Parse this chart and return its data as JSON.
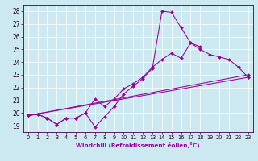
{
  "xlabel": "Windchill (Refroidissement éolien,°C)",
  "bg_color": "#cce8f0",
  "line_color": "#990099",
  "xlim": [
    -0.5,
    23.5
  ],
  "ylim": [
    18.5,
    28.5
  ],
  "xticks": [
    0,
    1,
    2,
    3,
    4,
    5,
    6,
    7,
    8,
    9,
    10,
    11,
    12,
    13,
    14,
    15,
    16,
    17,
    18,
    19,
    20,
    21,
    22,
    23
  ],
  "yticks": [
    19,
    20,
    21,
    22,
    23,
    24,
    25,
    26,
    27,
    28
  ],
  "series": [
    {
      "x": [
        0,
        1,
        2,
        3,
        4,
        5,
        6,
        7,
        8,
        9,
        10,
        11,
        12,
        13,
        14,
        15,
        16,
        17,
        18
      ],
      "y": [
        19.8,
        19.9,
        19.6,
        19.1,
        19.6,
        19.6,
        20.0,
        18.9,
        19.7,
        20.5,
        21.5,
        22.1,
        22.7,
        23.5,
        28.0,
        27.9,
        26.7,
        25.5,
        25.2
      ]
    },
    {
      "x": [
        0,
        1,
        2,
        3,
        4,
        5,
        6,
        7,
        8,
        9,
        10,
        11,
        12,
        13,
        14,
        15,
        16,
        17,
        18,
        19,
        20,
        21,
        22,
        23
      ],
      "y": [
        19.8,
        19.9,
        19.6,
        19.1,
        19.6,
        19.6,
        20.0,
        21.1,
        20.5,
        21.1,
        21.9,
        22.3,
        22.8,
        23.6,
        24.2,
        24.7,
        24.3,
        25.5,
        25.0,
        24.6,
        24.4,
        24.2,
        23.6,
        22.8
      ]
    },
    {
      "x": [
        0,
        23
      ],
      "y": [
        19.8,
        22.8
      ]
    },
    {
      "x": [
        0,
        23
      ],
      "y": [
        19.8,
        23.0
      ]
    }
  ]
}
